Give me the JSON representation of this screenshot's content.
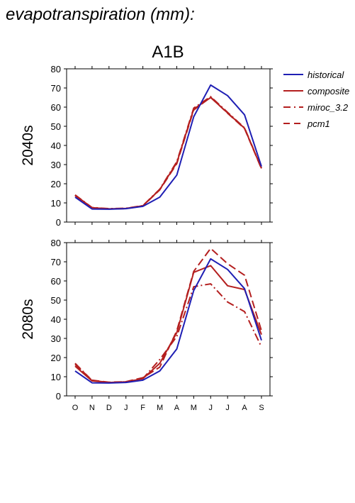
{
  "figure": {
    "title": "evapotranspiration (mm):",
    "scenario": "A1B"
  },
  "colors": {
    "historical": "#1f1fb4",
    "projection": "#b41f1f"
  },
  "legend": {
    "placement": "right",
    "entries": [
      {
        "label": "historical",
        "dash": "solid",
        "color": "#1f1fb4"
      },
      {
        "label": "composite",
        "dash": "solid",
        "color": "#b41f1f"
      },
      {
        "label": "miroc_3.2",
        "dash": "dashdot",
        "color": "#b41f1f"
      },
      {
        "label": "pcm1",
        "dash": "dashed",
        "color": "#b41f1f"
      }
    ]
  },
  "chart_data": [
    {
      "type": "line",
      "row_label": "2040s",
      "categories": [
        "O",
        "N",
        "D",
        "J",
        "F",
        "M",
        "A",
        "M",
        "J",
        "J",
        "A",
        "S"
      ],
      "ylim": [
        0,
        80
      ],
      "yticks": [
        0,
        10,
        20,
        30,
        40,
        50,
        60,
        70,
        80
      ],
      "series": [
        {
          "name": "historical",
          "color": "#1f1fb4",
          "dash": "solid",
          "values": [
            13,
            6.8,
            6.7,
            7,
            8.2,
            13,
            24.5,
            55,
            71.5,
            66,
            56,
            29
          ]
        },
        {
          "name": "composite",
          "color": "#b41f1f",
          "dash": "solid",
          "values": [
            14,
            7.5,
            6.9,
            7.1,
            8.5,
            17,
            31,
            59,
            65,
            57,
            49,
            28
          ]
        },
        {
          "name": "miroc_3.2",
          "color": "#b41f1f",
          "dash": "dashdot",
          "values": [
            14.2,
            7.6,
            7,
            7.2,
            8.6,
            17.2,
            31.5,
            59.5,
            65.5,
            57.3,
            49.2,
            28.2
          ]
        },
        {
          "name": "pcm1",
          "color": "#b41f1f",
          "dash": "dashed",
          "values": [
            13.8,
            7.4,
            6.8,
            7,
            8.4,
            16.8,
            30.5,
            58.5,
            65.2,
            56.8,
            48.8,
            27.8
          ]
        }
      ]
    },
    {
      "type": "line",
      "row_label": "2080s",
      "categories": [
        "O",
        "N",
        "D",
        "J",
        "F",
        "M",
        "A",
        "M",
        "J",
        "J",
        "A",
        "S"
      ],
      "ylim": [
        0,
        80
      ],
      "yticks": [
        0,
        10,
        20,
        30,
        40,
        50,
        60,
        70,
        80
      ],
      "series": [
        {
          "name": "historical",
          "color": "#1f1fb4",
          "dash": "solid",
          "values": [
            13,
            6.8,
            6.7,
            7,
            8.2,
            13,
            24.5,
            55,
            71.5,
            66,
            56,
            29
          ]
        },
        {
          "name": "composite",
          "color": "#b41f1f",
          "dash": "solid",
          "values": [
            15.5,
            7.8,
            7,
            7.3,
            9,
            17,
            33,
            64.5,
            68,
            57.5,
            55.5,
            32
          ]
        },
        {
          "name": "miroc_3.2",
          "color": "#b41f1f",
          "dash": "dashdot",
          "values": [
            17,
            8,
            7,
            7.3,
            9,
            19,
            31,
            57,
            58.5,
            49,
            44,
            25.5
          ]
        },
        {
          "name": "pcm1",
          "color": "#b41f1f",
          "dash": "dashed",
          "values": [
            16.5,
            8.2,
            7.1,
            7.4,
            9.5,
            15,
            34,
            65,
            77,
            69,
            63,
            34
          ]
        }
      ]
    }
  ]
}
